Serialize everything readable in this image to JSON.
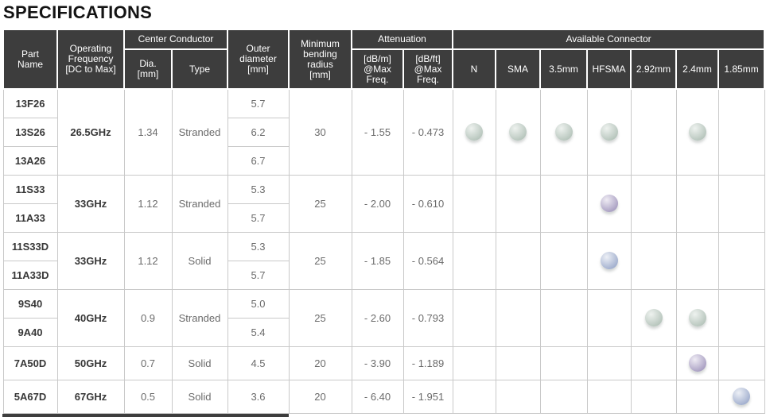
{
  "title": "SPECIFICATIONS",
  "colors": {
    "header_bg": "#3d3d3d",
    "header_text": "#ffffff",
    "body_border": "#c9c9c9",
    "value_text": "#6b6b6b",
    "part_text": "#373737",
    "dots": {
      "green": {
        "light": "#eef2ef",
        "dark": "#b5c4bb"
      },
      "purple": {
        "light": "#efecf4",
        "dark": "#a79dc1"
      },
      "blue": {
        "light": "#edf0f6",
        "dark": "#9fadcd"
      }
    }
  },
  "table": {
    "header": {
      "part": "Part\nName",
      "freq": "Operating\nFrequency\n[DC to Max]",
      "center_conductor": "Center Conductor",
      "dia": "Dia.\n[mm]",
      "type": "Type",
      "outer": "Outer\ndiameter\n[mm]",
      "bending": "Minimum\nbending\nradius\n[mm]",
      "attenuation": "Attenuation",
      "db_m": "[dB/m]\n@Max\nFreq.",
      "db_ft": "[dB/ft]\n@Max\nFreq.",
      "available_connector": "Available Connector",
      "connectors": [
        "N",
        "SMA",
        "3.5mm",
        "HFSMA",
        "2.92mm",
        "2.4mm",
        "1.85mm"
      ]
    },
    "groups": [
      {
        "rows": [
          {
            "part": "13F26",
            "outer": "5.7"
          },
          {
            "part": "13S26",
            "outer": "6.2"
          },
          {
            "part": "13A26",
            "outer": "6.7"
          }
        ],
        "freq": "26.5GHz",
        "dia": "1.34",
        "type": "Stranded",
        "bending": "30",
        "db_m": "- 1.55",
        "db_ft": "- 0.473",
        "connectors": {
          "N": "green",
          "SMA": "green",
          "3.5mm": "green",
          "HFSMA": "green",
          "2.4mm": "green"
        }
      },
      {
        "rows": [
          {
            "part": "11S33",
            "outer": "5.3"
          },
          {
            "part": "11A33",
            "outer": "5.7"
          }
        ],
        "freq": "33GHz",
        "dia": "1.12",
        "type": "Stranded",
        "bending": "25",
        "db_m": "- 2.00",
        "db_ft": "- 0.610",
        "connectors": {
          "HFSMA": "purple"
        }
      },
      {
        "rows": [
          {
            "part": "11S33D",
            "outer": "5.3"
          },
          {
            "part": "11A33D",
            "outer": "5.7"
          }
        ],
        "freq": "33GHz",
        "dia": "1.12",
        "type": "Solid",
        "bending": "25",
        "db_m": "- 1.85",
        "db_ft": "- 0.564",
        "connectors": {
          "HFSMA": "blue"
        }
      },
      {
        "rows": [
          {
            "part": "9S40",
            "outer": "5.0"
          },
          {
            "part": "9A40",
            "outer": "5.4"
          }
        ],
        "freq": "40GHz",
        "dia": "0.9",
        "type": "Stranded",
        "bending": "25",
        "db_m": "- 2.60",
        "db_ft": "- 0.793",
        "connectors": {
          "2.92mm": "green",
          "2.4mm": "green"
        }
      },
      {
        "rows": [
          {
            "part": "7A50D",
            "outer": "4.5"
          }
        ],
        "freq": "50GHz",
        "dia": "0.7",
        "type": "Solid",
        "bending": "20",
        "db_m": "- 3.90",
        "db_ft": "- 1.189",
        "connectors": {
          "2.4mm": "purple"
        }
      },
      {
        "rows": [
          {
            "part": "5A67D",
            "outer": "3.6"
          }
        ],
        "freq": "67GHz",
        "dia": "0.5",
        "type": "Solid",
        "bending": "20",
        "db_m": "- 6.40",
        "db_ft": "- 1.951",
        "connectors": {
          "1.85mm": "blue"
        }
      }
    ]
  }
}
